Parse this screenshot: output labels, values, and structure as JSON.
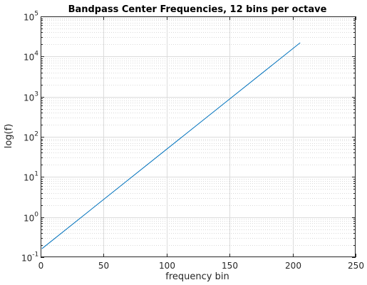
{
  "chart_data": {
    "type": "line",
    "title": "Bandpass Center Frequencies, 12 bins per octave",
    "xlabel": "frequency bin",
    "ylabel": "log(f)",
    "xlim": [
      0,
      250
    ],
    "ylim_log10": [
      -1,
      5
    ],
    "y_scale": "log",
    "grid": true,
    "minor_grid": true,
    "x_ticks": [
      0,
      50,
      100,
      150,
      200,
      250
    ],
    "y_ticks": [
      {
        "base": "10",
        "exp": "-1"
      },
      {
        "base": "10",
        "exp": "0"
      },
      {
        "base": "10",
        "exp": "1"
      },
      {
        "base": "10",
        "exp": "2"
      },
      {
        "base": "10",
        "exp": "3"
      },
      {
        "base": "10",
        "exp": "4"
      },
      {
        "base": "10",
        "exp": "5"
      }
    ],
    "series": [
      {
        "color": "#0072bd",
        "points": [
          {
            "x": 1,
            "y": 0.163
          },
          {
            "x": 206,
            "y": 22000
          }
        ]
      }
    ]
  }
}
